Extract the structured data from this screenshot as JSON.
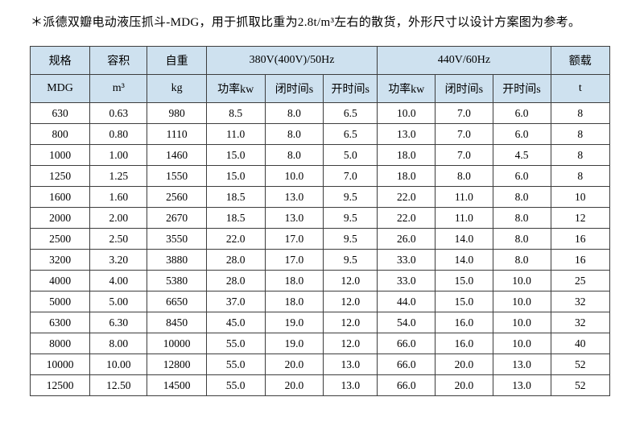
{
  "title": "＊派德双瓣电动液压抓斗-MDG，用于抓取比重为2.8t/m³左右的散货，外形尺寸以设计方案图为参考。",
  "colors": {
    "header_bg": "#cee1ef",
    "border": "#3d3d3d",
    "text": "#000000"
  },
  "table": {
    "groups": [
      {
        "label": "规格",
        "colspan": 1
      },
      {
        "label": "容积",
        "colspan": 1
      },
      {
        "label": "自重",
        "colspan": 1
      },
      {
        "label": "380V(400V)/50Hz",
        "colspan": 3
      },
      {
        "label": "440V/60Hz",
        "colspan": 3
      },
      {
        "label": "额载",
        "colspan": 1
      }
    ],
    "subheaders": [
      "MDG",
      "m³",
      "kg",
      "功率kw",
      "闭时间s",
      "开时间s",
      "功率kw",
      "闭时间s",
      "开时间s",
      "t"
    ],
    "rows": [
      [
        "630",
        "0.63",
        "980",
        "8.5",
        "8.0",
        "6.5",
        "10.0",
        "7.0",
        "6.0",
        "8"
      ],
      [
        "800",
        "0.80",
        "1110",
        "11.0",
        "8.0",
        "6.5",
        "13.0",
        "7.0",
        "6.0",
        "8"
      ],
      [
        "1000",
        "1.00",
        "1460",
        "15.0",
        "8.0",
        "5.0",
        "18.0",
        "7.0",
        "4.5",
        "8"
      ],
      [
        "1250",
        "1.25",
        "1550",
        "15.0",
        "10.0",
        "7.0",
        "18.0",
        "8.0",
        "6.0",
        "8"
      ],
      [
        "1600",
        "1.60",
        "2560",
        "18.5",
        "13.0",
        "9.5",
        "22.0",
        "11.0",
        "8.0",
        "10"
      ],
      [
        "2000",
        "2.00",
        "2670",
        "18.5",
        "13.0",
        "9.5",
        "22.0",
        "11.0",
        "8.0",
        "12"
      ],
      [
        "2500",
        "2.50",
        "3550",
        "22.0",
        "17.0",
        "9.5",
        "26.0",
        "14.0",
        "8.0",
        "16"
      ],
      [
        "3200",
        "3.20",
        "3880",
        "28.0",
        "17.0",
        "9.5",
        "33.0",
        "14.0",
        "8.0",
        "16"
      ],
      [
        "4000",
        "4.00",
        "5380",
        "28.0",
        "18.0",
        "12.0",
        "33.0",
        "15.0",
        "10.0",
        "25"
      ],
      [
        "5000",
        "5.00",
        "6650",
        "37.0",
        "18.0",
        "12.0",
        "44.0",
        "15.0",
        "10.0",
        "32"
      ],
      [
        "6300",
        "6.30",
        "8450",
        "45.0",
        "19.0",
        "12.0",
        "54.0",
        "16.0",
        "10.0",
        "32"
      ],
      [
        "8000",
        "8.00",
        "10000",
        "55.0",
        "19.0",
        "12.0",
        "66.0",
        "16.0",
        "10.0",
        "40"
      ],
      [
        "10000",
        "10.00",
        "12800",
        "55.0",
        "20.0",
        "13.0",
        "66.0",
        "20.0",
        "13.0",
        "52"
      ],
      [
        "12500",
        "12.50",
        "14500",
        "55.0",
        "20.0",
        "13.0",
        "66.0",
        "20.0",
        "13.0",
        "52"
      ]
    ]
  }
}
